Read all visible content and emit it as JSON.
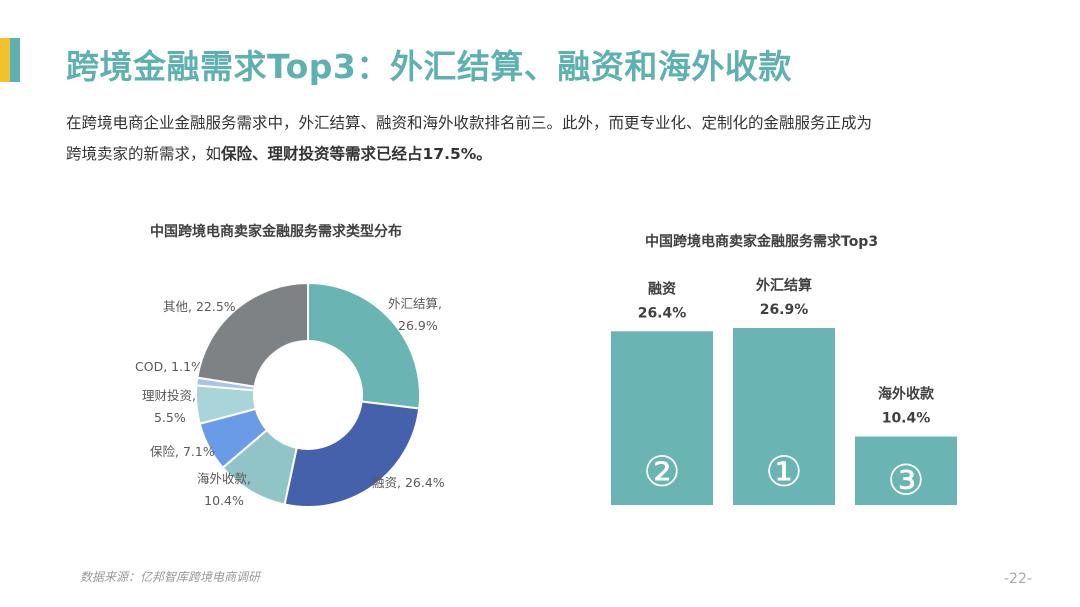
{
  "header": {
    "title": "跨境金融需求Top3：外汇结算、融资和海外收款",
    "accent_colors": [
      "#f2c12e",
      "#5fb0b0"
    ]
  },
  "intro": {
    "line1": "在跨境电商企业金融服务需求中，外汇结算、融资和海外收款排名前三。此外，而更专业化、定制化的金融服务正成为",
    "line2_normal": "跨境卖家的新需求，如",
    "line2_bold": "保险、理财投资等需求已经占17.5%。"
  },
  "chart_data": [
    {
      "type": "pie",
      "title": "中国跨境电商卖家金融服务需求类型分布",
      "slices": [
        {
          "label": "外汇结算",
          "value": 26.9,
          "display": "26.9%",
          "color": "#6ab4b3"
        },
        {
          "label": "融资",
          "value": 26.4,
          "display": "26.4%",
          "color": "#4561ac"
        },
        {
          "label": "海外收款",
          "value": 10.4,
          "display": "10.4%",
          "color": "#90c4c8"
        },
        {
          "label": "保险",
          "value": 7.1,
          "display": "7.1%",
          "color": "#6a9be6"
        },
        {
          "label": "理财投资",
          "value": 5.5,
          "display": "5.5%",
          "color": "#a9d4d9"
        },
        {
          "label": "COD",
          "value": 1.1,
          "display": "1.1%",
          "color": "#a7c3ec"
        },
        {
          "label": "其他",
          "value": 22.5,
          "display": "22.5%",
          "color": "#7f8285"
        }
      ]
    },
    {
      "type": "bar",
      "title": "中国跨境电商卖家金融服务需求Top3",
      "categories": [
        "融资",
        "外汇结算",
        "海外收款"
      ],
      "values": [
        26.4,
        26.9,
        10.4
      ],
      "value_labels": [
        "26.4%",
        "26.9%",
        "10.4%"
      ],
      "rank_labels": [
        "②",
        "①",
        "③"
      ],
      "color": "#6ab4b3",
      "ylim": [
        0,
        26.9
      ]
    }
  ],
  "source": "数据来源：亿邦智库跨境电商调研",
  "page_number": "-22-"
}
